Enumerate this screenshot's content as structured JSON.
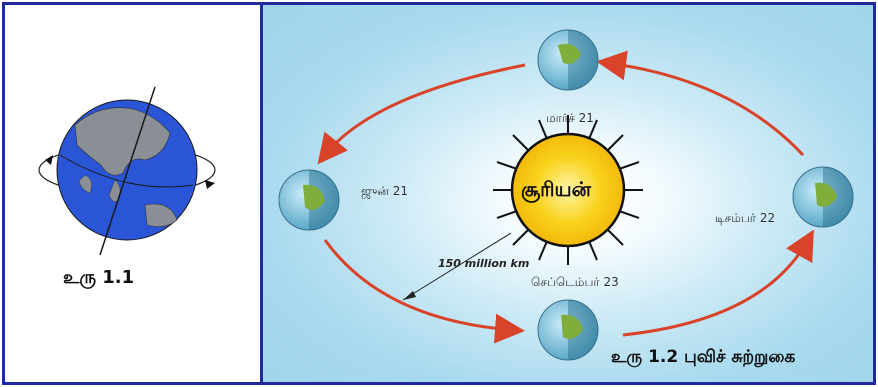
{
  "fig1": {
    "caption": "உரு 1.1"
  },
  "fig2": {
    "caption": "உரு 1.2 புவிச் சுற்றுகை",
    "sun_label": "சூரியன்",
    "distance_label": "150 million km",
    "seasons": {
      "march": "மார்ச் 21",
      "june": "ஜுன் 21",
      "september": "செப்டெம்பர் 23",
      "december": "டிசம்பர் 22"
    }
  },
  "colors": {
    "border": "#1f2a9c",
    "orbit_arrow": "#d8432a",
    "sun": "#f7c90c",
    "ocean": "#2a5bd7"
  }
}
